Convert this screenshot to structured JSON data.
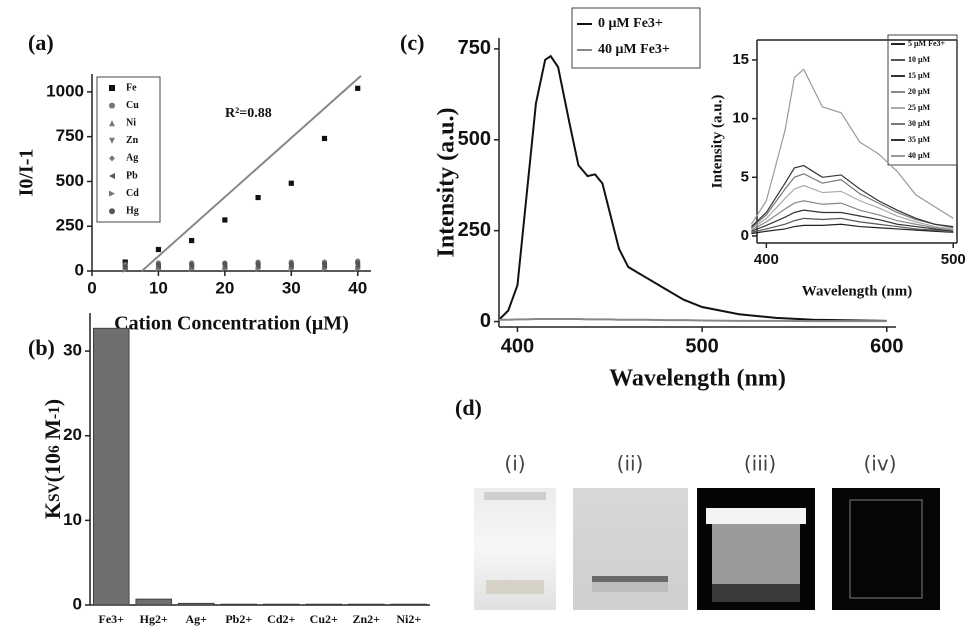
{
  "chart_data": [
    {
      "type": "scatter",
      "panel_label": "(a)",
      "x_label": "Cation Concentration (μM)",
      "y_label": "I0/I-1",
      "x": [
        5,
        10,
        15,
        20,
        25,
        30,
        35,
        40
      ],
      "xlim": [
        0,
        42
      ],
      "ylim": [
        0,
        1100
      ],
      "xticks": [
        0,
        10,
        20,
        30,
        40
      ],
      "yticks": [
        0,
        250,
        500,
        750,
        1000
      ],
      "series": [
        {
          "name": "Fe",
          "color": "#111111",
          "marker": "square",
          "values": [
            50,
            120,
            170,
            285,
            410,
            490,
            740,
            1020
          ]
        },
        {
          "name": "Cu",
          "color": "#777777",
          "marker": "circle",
          "values": [
            30,
            45,
            45,
            45,
            50,
            50,
            50,
            55
          ]
        },
        {
          "name": "Ni",
          "color": "#777777",
          "marker": "triangle-up",
          "values": [
            20,
            30,
            30,
            35,
            35,
            35,
            35,
            40
          ]
        },
        {
          "name": "Zn",
          "color": "#777777",
          "marker": "triangle-down",
          "values": [
            10,
            15,
            15,
            20,
            20,
            20,
            20,
            20
          ]
        },
        {
          "name": "Ag",
          "color": "#777777",
          "marker": "diamond",
          "values": [
            40,
            40,
            40,
            45,
            45,
            45,
            45,
            50
          ]
        },
        {
          "name": "Pb",
          "color": "#555555",
          "marker": "triangle-left",
          "values": [
            15,
            20,
            20,
            20,
            25,
            25,
            25,
            25
          ]
        },
        {
          "name": "Cd",
          "color": "#777777",
          "marker": "triangle-right",
          "values": [
            5,
            10,
            10,
            10,
            10,
            10,
            10,
            10
          ]
        },
        {
          "name": "Hg",
          "color": "#555555",
          "marker": "circle",
          "values": [
            25,
            35,
            35,
            40,
            40,
            40,
            40,
            45
          ]
        }
      ],
      "fit": {
        "x": [
          7.5,
          40.5
        ],
        "y": [
          0,
          1090
        ],
        "color": "#888888"
      },
      "annotation": "R²=0.88"
    },
    {
      "type": "bar",
      "panel_label": "(b)",
      "y_label_parts": [
        "K",
        "SV",
        "(10",
        "6",
        " M",
        "-1",
        ")"
      ],
      "categories": [
        "Fe3+",
        "Hg2+",
        "Ag+",
        "Pb2+",
        "Cd2+",
        "Cu2+",
        "Zn2+",
        "Ni2+"
      ],
      "values": [
        32.7,
        0.7,
        0.2,
        0.1,
        0.1,
        0.1,
        0.1,
        0.1
      ],
      "color": "#6e6e6e",
      "ylim": [
        0,
        34.5
      ],
      "yticks": [
        0,
        10,
        20,
        30
      ]
    },
    {
      "type": "line",
      "panel_label": "(c)",
      "x_label": "Wavelength (nm)",
      "y_label": "Intensity (a.u.)",
      "x": [
        390,
        395,
        400,
        405,
        410,
        415,
        418,
        422,
        428,
        433,
        438,
        442,
        446,
        450,
        455,
        460,
        465,
        470,
        480,
        490,
        500,
        520,
        540,
        560,
        600
      ],
      "xlim": [
        390,
        605
      ],
      "ylim": [
        -15,
        780
      ],
      "xticks": [
        400,
        500,
        600
      ],
      "yticks": [
        0,
        250,
        500,
        750
      ],
      "series": [
        {
          "name": "0 μM Fe3+",
          "color": "#111111",
          "values": [
            5,
            30,
            100,
            350,
            600,
            720,
            730,
            700,
            550,
            430,
            400,
            405,
            380,
            300,
            200,
            150,
            135,
            120,
            90,
            60,
            40,
            20,
            10,
            5,
            2
          ]
        },
        {
          "name": "40 μM Fe3+",
          "color": "#888888",
          "values": [
            5,
            5,
            6,
            6,
            7,
            7,
            7,
            7,
            7,
            7,
            6,
            6,
            6,
            6,
            5,
            5,
            5,
            5,
            4,
            4,
            3,
            2,
            2,
            1,
            1
          ]
        }
      ]
    },
    {
      "type": "line",
      "x_label": "Wavelength (nm)",
      "y_label": "Intensity (a.u.)",
      "x": [
        392,
        400,
        410,
        415,
        420,
        430,
        440,
        450,
        460,
        470,
        480,
        490,
        500
      ],
      "xlim": [
        395,
        502
      ],
      "ylim": [
        -0.6,
        16.7
      ],
      "xticks": [
        400,
        500
      ],
      "yticks": [
        0,
        5,
        10,
        15
      ],
      "series": [
        {
          "name": "5 μM Fe3+",
          "color": "#222222",
          "values": [
            0.2,
            0.4,
            0.6,
            0.8,
            0.9,
            0.9,
            1,
            0.8,
            0.7,
            0.6,
            0.5,
            0.4,
            0.3
          ]
        },
        {
          "name": "10 μM",
          "color": "#555555",
          "values": [
            0.3,
            0.6,
            1,
            1.3,
            1.5,
            1.4,
            1.5,
            1.2,
            1,
            0.8,
            0.6,
            0.5,
            0.3
          ]
        },
        {
          "name": "15 μM",
          "color": "#333333",
          "values": [
            0.4,
            0.9,
            1.6,
            2,
            2.2,
            2,
            2,
            1.7,
            1.4,
            1,
            0.8,
            0.6,
            0.4
          ]
        },
        {
          "name": "20 μM",
          "color": "#888888",
          "values": [
            0.5,
            1.2,
            2.3,
            2.8,
            3,
            2.7,
            2.8,
            2.2,
            1.8,
            1.3,
            1,
            0.7,
            0.5
          ]
        },
        {
          "name": "25 μM",
          "color": "#aaaaaa",
          "values": [
            0.6,
            1.5,
            3.2,
            4,
            4.3,
            3.7,
            3.8,
            3,
            2.4,
            1.7,
            1.2,
            0.8,
            0.6
          ]
        },
        {
          "name": "30 μM",
          "color": "#777777",
          "values": [
            0.7,
            1.8,
            4,
            5,
            5.3,
            4.5,
            4.8,
            3.6,
            2.8,
            2,
            1.4,
            1,
            0.7
          ]
        },
        {
          "name": "35 μM",
          "color": "#333333",
          "values": [
            0.8,
            2,
            4.5,
            5.8,
            6,
            5,
            5.2,
            4,
            3,
            2.2,
            1.5,
            1,
            0.8
          ]
        },
        {
          "name": "40 μM",
          "color": "#999999",
          "values": [
            1,
            3,
            9,
            13.5,
            14.2,
            11,
            10.5,
            8,
            7,
            5.5,
            3.5,
            2.5,
            1.5
          ]
        }
      ]
    }
  ],
  "photo_panel": {
    "label": "(d)",
    "captions": [
      "(i)",
      "(ii)",
      "(iii)",
      "(iv)"
    ]
  }
}
